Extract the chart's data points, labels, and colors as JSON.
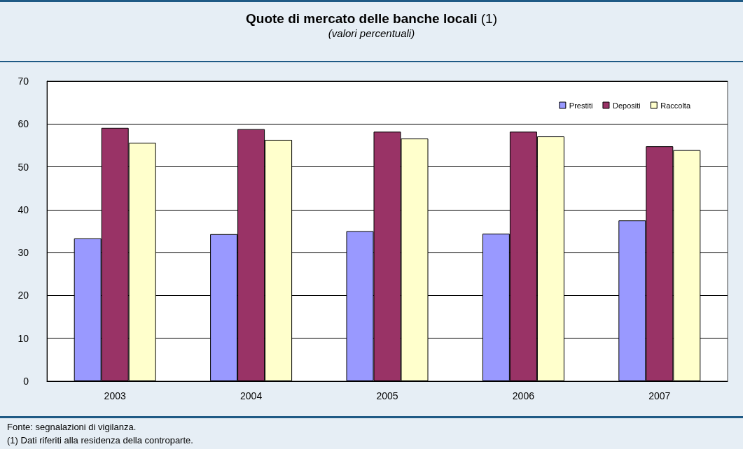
{
  "chart_data": {
    "type": "bar",
    "title": "Quote di mercato delle banche locali (1)",
    "subtitle": "(valori percentuali)",
    "categories": [
      "2003",
      "2004",
      "2005",
      "2006",
      "2007"
    ],
    "series": [
      {
        "name": "Prestiti",
        "color": "#9999ff",
        "values": [
          33.3,
          34.3,
          35.0,
          34.4,
          37.5
        ]
      },
      {
        "name": "Depositi",
        "color": "#993366",
        "values": [
          59.1,
          58.8,
          58.2,
          58.2,
          54.8
        ]
      },
      {
        "name": "Raccolta",
        "color": "#ffffcc",
        "values": [
          55.6,
          56.3,
          56.6,
          57.1,
          53.9
        ]
      }
    ],
    "ylim": [
      0,
      70
    ],
    "yticks": [
      0,
      10,
      20,
      30,
      40,
      50,
      60,
      70
    ],
    "grid": "y",
    "legend": "top right",
    "annotations": [
      "Fonte: segnalazioni di vigilanza.",
      "(1) Dati riferiti alla residenza della controparte."
    ]
  }
}
